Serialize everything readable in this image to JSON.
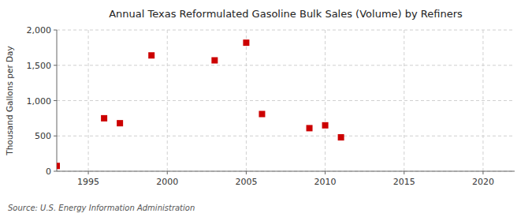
{
  "chart_data": {
    "type": "scatter",
    "title": "Annual Texas Reformulated Gasoline Bulk Sales (Volume) by Refiners",
    "ylabel": "Thousand Gallons per Day",
    "source": "Source: U.S. Energy Information Administration",
    "x": [
      1993,
      1996,
      1997,
      1999,
      2003,
      2005,
      2006,
      2009,
      2010,
      2011
    ],
    "values": [
      75,
      750,
      680,
      1640,
      1570,
      1820,
      810,
      610,
      650,
      480
    ],
    "color": "#cc0000",
    "marker": "square",
    "xlim": [
      1993,
      2022
    ],
    "ylim": [
      0,
      2000
    ],
    "xticks": [
      1995,
      2000,
      2005,
      2010,
      2015,
      2020
    ],
    "yticks": [
      0,
      500,
      {
        "value": 1000,
        "label": "1,000"
      },
      {
        "value": 1500,
        "label": "1,500"
      },
      {
        "value": 2000,
        "label": "2,000"
      }
    ],
    "grid": true
  }
}
